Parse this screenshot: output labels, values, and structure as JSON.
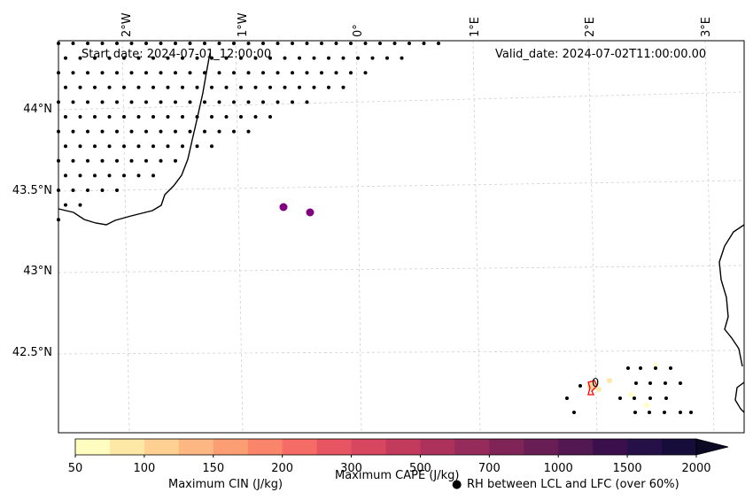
{
  "map": {
    "start_date": "Start date: 2024-07-01_12:00:00",
    "valid_date": "Valid_date: 2024-07-02T11:00:00.00",
    "lon_labels": [
      "2°W",
      "1°W",
      "0°",
      "1°E",
      "2°E",
      "3°E"
    ],
    "lat_labels": [
      "44°N",
      "43.5°N",
      "43°N",
      "42.5°N"
    ],
    "cin_label": "Maximum CIN (J/kg)",
    "cin_color": "#ff0000",
    "cape_label": "Maximum CAPE (J/kg)",
    "rh_label": "RH between LCL and LFC (over 60%)",
    "rh_marker": "●",
    "cin_contour_label": "0",
    "colorbar_ticks": [
      "50",
      "100",
      "150",
      "200",
      "300",
      "500",
      "700",
      "1000",
      "1500",
      "2000"
    ],
    "colorbar_colors": [
      "#fffdbf",
      "#fee8a5",
      "#fed192",
      "#fdb782",
      "#fc9e73",
      "#fa856b",
      "#f56b65",
      "#e85562",
      "#d7475f",
      "#c23b5d",
      "#ac325c",
      "#952b5a",
      "#802458",
      "#691d55",
      "#531751",
      "#3b0f4c",
      "#251048",
      "#160d3a"
    ],
    "colorbar_extend_color": "#0b0924",
    "purple_points_color": "#800080"
  }
}
